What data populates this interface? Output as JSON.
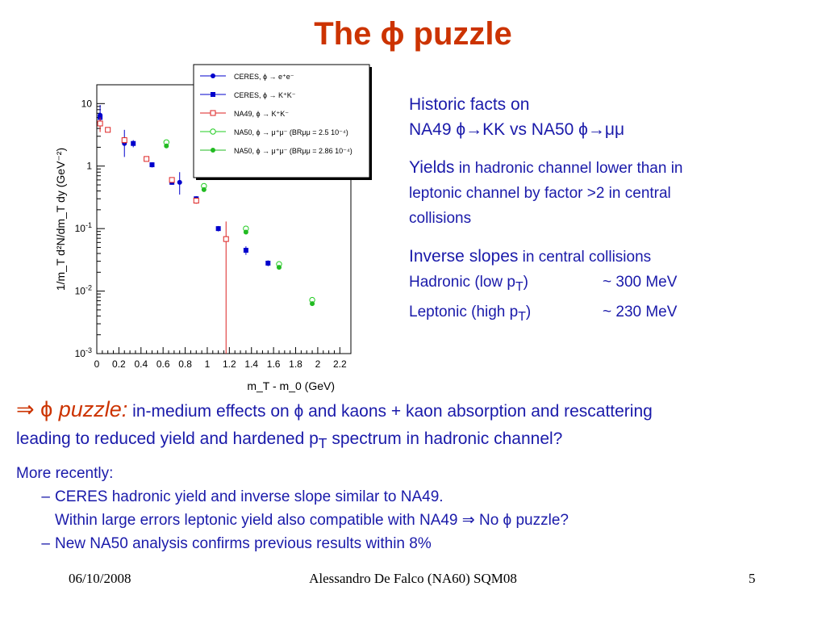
{
  "slide": {
    "title": "The ϕ puzzle",
    "facts": {
      "heading1": "Historic facts on",
      "heading2": "NA49 ϕ→KK vs NA50 ϕ→μμ",
      "yields_label": "Yields",
      "yields_text1": " in hadronic channel lower  than in",
      "yields_text2": "leptonic channel by  factor >2 in central",
      "yields_text3": "collisions",
      "slopes_label": "Inverse slopes",
      "slopes_text": " in central collisions",
      "hadronic_label": "Hadronic (low p",
      "hadronic_sub": "T",
      "hadronic_close": ")",
      "hadronic_value": "~ 300 MeV",
      "leptonic_label": "Leptonic  (high p",
      "leptonic_sub": "T",
      "leptonic_close": ")",
      "leptonic_value": "~ 230 MeV"
    },
    "puzzle": {
      "arrow": "⇒ ϕ ",
      "label": "puzzle:",
      "text1": " in-medium effects on ϕ and kaons + kaon absorption and rescattering",
      "text2a": "leading to reduced yield and hardened p",
      "text2sub": "T",
      "text2b": " spectrum in hadronic channel?"
    },
    "recent": {
      "heading": "More recently:",
      "dash": "–",
      "item1": "CERES hadronic yield and inverse slope similar to NA49.",
      "item1b": "Within large errors leptonic yield also compatible with NA49 ⇒ No ϕ puzzle?",
      "item2": "New NA50 analysis confirms previous results within 8%"
    },
    "footer": {
      "date": "06/10/2008",
      "author": "Alessandro De Falco (NA60) SQM08",
      "page": "5"
    }
  },
  "colors": {
    "title": "#cc3300",
    "text": "#1a1aaa",
    "ceres_ee": "#0000cc",
    "ceres_kk": "#0000cc",
    "na49": "#dd2222",
    "na50_open": "#22cc22",
    "na50_full": "#22bb22"
  },
  "chart_data": {
    "type": "scatter",
    "xlabel": "m_T - m_0 (GeV)",
    "ylabel": "1/m_T d²N/dm_T dy (GeV⁻²)",
    "xlim": [
      0,
      2.3
    ],
    "ylim": [
      0.001,
      20
    ],
    "yscale": "log",
    "x_ticks": [
      "0",
      "0.2",
      "0.4",
      "0.6",
      "0.8",
      "1",
      "1.2",
      "1.4",
      "1.6",
      "1.8",
      "2",
      "2.2"
    ],
    "y_ticks": [
      {
        "value": 10,
        "base": "10",
        "exp": ""
      },
      {
        "value": 1,
        "base": "1",
        "exp": ""
      },
      {
        "value": 0.1,
        "base": "10",
        "exp": "-1"
      },
      {
        "value": 0.01,
        "base": "10",
        "exp": "-2"
      },
      {
        "value": 0.001,
        "base": "10",
        "exp": "-3"
      }
    ],
    "legend_position": "top-right",
    "series": [
      {
        "name": "CERES, ϕ → e⁺e⁻",
        "marker": "dot",
        "color": "#0000cc",
        "points": [
          [
            0.03,
            6.5,
            4.5,
            9.5
          ],
          [
            0.25,
            2.3,
            1.4,
            3.8
          ],
          [
            0.75,
            0.55,
            0.35,
            0.8
          ]
        ]
      },
      {
        "name": "CERES, ϕ → K⁺K⁻",
        "marker": "square",
        "color": "#0000cc",
        "points": [
          [
            0.03,
            6.0,
            5.0,
            7.0
          ],
          [
            0.33,
            2.3,
            2.0,
            2.6
          ],
          [
            0.5,
            1.05,
            0.95,
            1.15
          ],
          [
            0.68,
            0.55,
            0.5,
            0.6
          ],
          [
            0.9,
            0.3,
            0.27,
            0.33
          ],
          [
            1.1,
            0.1,
            0.09,
            0.11
          ],
          [
            1.35,
            0.045,
            0.038,
            0.052
          ],
          [
            1.55,
            0.028,
            0.025,
            0.031
          ]
        ]
      },
      {
        "name": "NA49, ϕ → K⁺K⁻",
        "marker": "open-square",
        "color": "#dd2222",
        "points": [
          [
            0.03,
            4.8,
            3.5,
            6.0
          ],
          [
            0.1,
            3.8,
            3.5,
            4.1
          ],
          [
            0.25,
            2.6,
            2.3,
            2.9
          ],
          [
            0.45,
            1.3,
            1.2,
            1.4
          ],
          [
            0.68,
            0.6,
            0.55,
            0.65
          ],
          [
            0.9,
            0.28,
            0.25,
            0.31
          ],
          [
            1.17,
            0.068,
            0.001,
            0.13
          ]
        ]
      },
      {
        "name": "NA50, ϕ → μ⁺μ⁻ (BRμμ = 2.5 10⁻⁴)",
        "marker": "open-circle",
        "color": "#22cc22",
        "points": [
          [
            0.63,
            2.4
          ],
          [
            0.97,
            0.48
          ],
          [
            1.35,
            0.1
          ],
          [
            1.65,
            0.027
          ],
          [
            1.95,
            0.0072
          ]
        ]
      },
      {
        "name": "NA50, ϕ → μ⁺μ⁻ (BRμμ = 2.86 10⁻⁴)",
        "marker": "dot",
        "color": "#22bb22",
        "points": [
          [
            0.63,
            2.1
          ],
          [
            0.97,
            0.42
          ],
          [
            1.35,
            0.088
          ],
          [
            1.65,
            0.024
          ],
          [
            1.95,
            0.0063
          ]
        ]
      }
    ]
  }
}
